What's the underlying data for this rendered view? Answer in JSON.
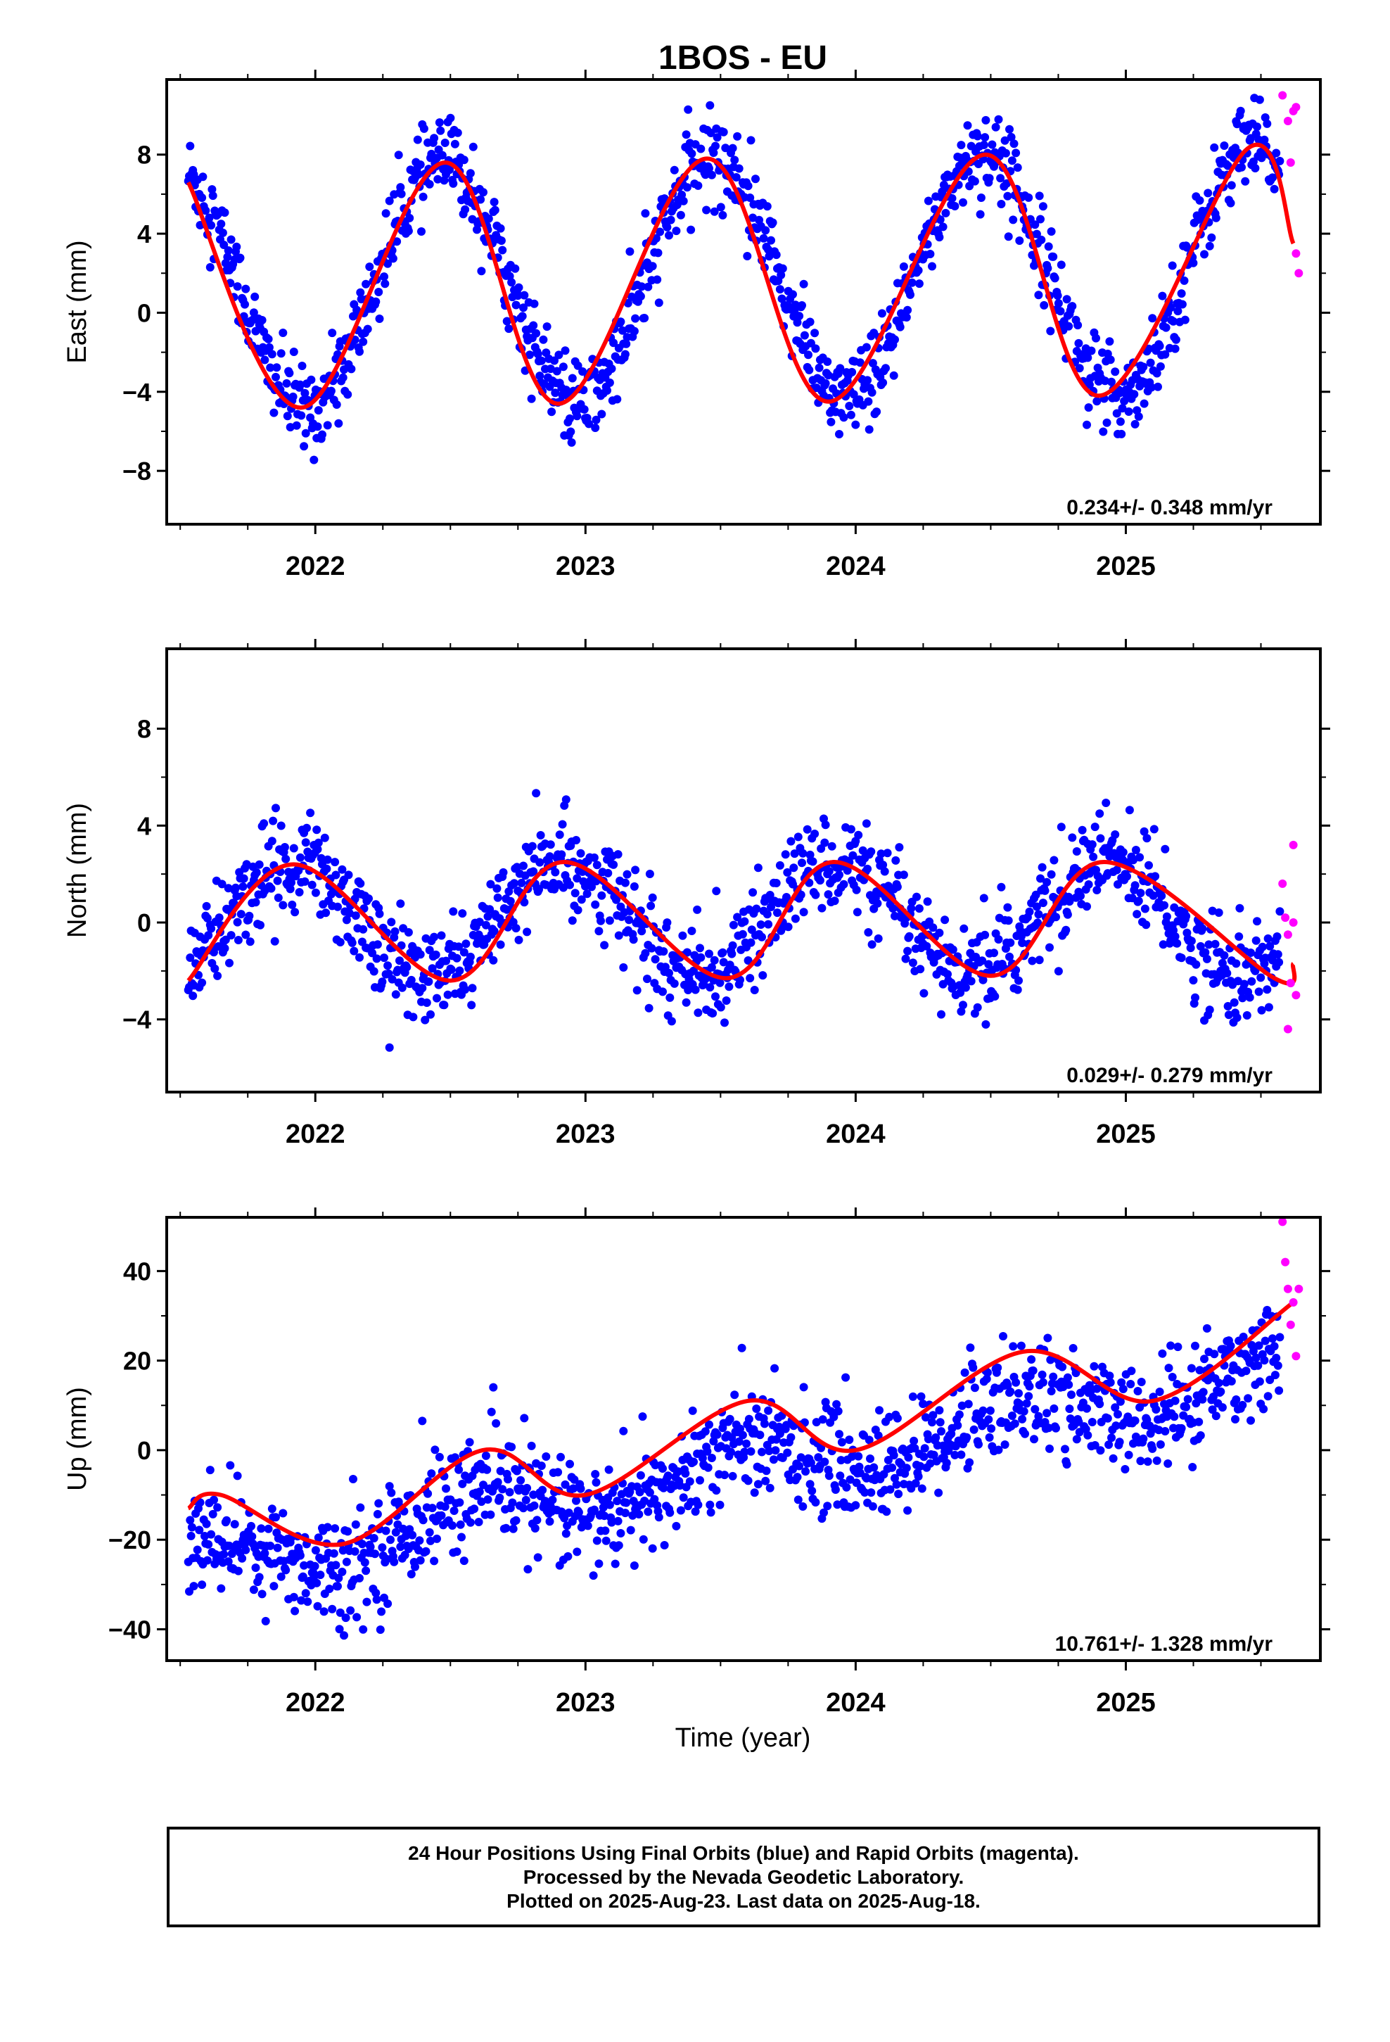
{
  "chart_data": {
    "type": "scatter",
    "title": "1BOS - EU",
    "xlabel": "Time (year)",
    "xlim": [
      2021.45,
      2025.72
    ],
    "colors": {
      "final": "#0000ff",
      "rapid": "#ff00ff",
      "model": "#ff0000"
    },
    "panels": [
      {
        "name": "east",
        "ylabel": "East (mm)",
        "ylim": [
          -10.7,
          11.8
        ],
        "yticks": [
          -8,
          -4,
          0,
          4,
          8
        ],
        "xticks": [
          "2022",
          "2023",
          "2024",
          "2025"
        ],
        "rate": "0.234+/- 0.348 mm/yr",
        "seasonal": {
          "mean": 1.7,
          "amplitude": 6.2,
          "peak_phase": 0.47,
          "trend": 0.234,
          "noise": 1.1,
          "scatter_points": 1200
        },
        "model_curve": [
          [
            2021.53,
            6.6
          ],
          [
            2021.95,
            -4.8
          ],
          [
            2022.48,
            7.6
          ],
          [
            2022.9,
            -4.6
          ],
          [
            2023.45,
            7.8
          ],
          [
            2023.9,
            -4.5
          ],
          [
            2024.48,
            8.0
          ],
          [
            2024.9,
            -4.2
          ],
          [
            2025.45,
            8.3
          ],
          [
            2025.62,
            3.5
          ]
        ],
        "rapid_points": [
          [
            2025.58,
            11.0
          ],
          [
            2025.6,
            9.7
          ],
          [
            2025.61,
            7.6
          ],
          [
            2025.62,
            10.2
          ],
          [
            2025.63,
            10.4
          ],
          [
            2025.63,
            3.0
          ],
          [
            2025.64,
            2.0
          ]
        ]
      },
      {
        "name": "north",
        "ylabel": "North (mm)",
        "ylim": [
          -7.0,
          11.3
        ],
        "yticks": [
          -4,
          0,
          4,
          8
        ],
        "xticks": [
          "2022",
          "2023",
          "2024",
          "2025"
        ],
        "rate": "0.029+/- 0.279 mm/yr",
        "seasonal": {
          "mean": 0.1,
          "amplitude": 2.4,
          "peak_phase": 0.92,
          "trend": 0.029,
          "noise": 1.0,
          "scatter_points": 1200
        },
        "model_curve": [
          [
            2021.53,
            -2.4
          ],
          [
            2021.92,
            2.4
          ],
          [
            2022.5,
            -2.4
          ],
          [
            2022.92,
            2.5
          ],
          [
            2023.52,
            -2.3
          ],
          [
            2023.92,
            2.5
          ],
          [
            2024.5,
            -2.2
          ],
          [
            2024.92,
            2.5
          ],
          [
            2025.55,
            -2.3
          ],
          [
            2025.62,
            -1.7
          ]
        ],
        "rapid_points": [
          [
            2025.58,
            1.6
          ],
          [
            2025.59,
            0.2
          ],
          [
            2025.6,
            -0.5
          ],
          [
            2025.61,
            -2.5
          ],
          [
            2025.62,
            3.2
          ],
          [
            2025.62,
            0.0
          ],
          [
            2025.63,
            -3.0
          ],
          [
            2025.6,
            -4.4
          ]
        ]
      },
      {
        "name": "up",
        "ylabel": "Up (mm)",
        "ylim": [
          -47,
          52
        ],
        "yticks": [
          -40,
          -20,
          0,
          20,
          40
        ],
        "xticks": [
          "2022",
          "2023",
          "2024",
          "2025"
        ],
        "rate": "10.761+/- 1.328 mm/yr",
        "seasonal": {
          "mean": -5,
          "amplitude": 5.5,
          "peak_phase": 0.6,
          "trend": 10.761,
          "noise": 6.0,
          "scatter_points": 1200
        },
        "model_curve": [
          [
            2021.53,
            -13
          ],
          [
            2021.65,
            -10
          ],
          [
            2022.1,
            -21
          ],
          [
            2022.62,
            0
          ],
          [
            2023.0,
            -10
          ],
          [
            2023.6,
            11
          ],
          [
            2024.0,
            0
          ],
          [
            2024.62,
            22
          ],
          [
            2025.1,
            11
          ],
          [
            2025.62,
            33
          ]
        ],
        "rapid_points": [
          [
            2025.58,
            51
          ],
          [
            2025.59,
            42
          ],
          [
            2025.6,
            36
          ],
          [
            2025.61,
            28
          ],
          [
            2025.62,
            33
          ],
          [
            2025.63,
            21
          ],
          [
            2025.64,
            36
          ]
        ]
      }
    ]
  },
  "footer": {
    "line1": "24 Hour Positions Using Final Orbits (blue) and Rapid Orbits (magenta).",
    "line2": "Processed by the Nevada Geodetic Laboratory.",
    "line3": "Plotted on 2025-Aug-23. Last data on 2025-Aug-18."
  }
}
